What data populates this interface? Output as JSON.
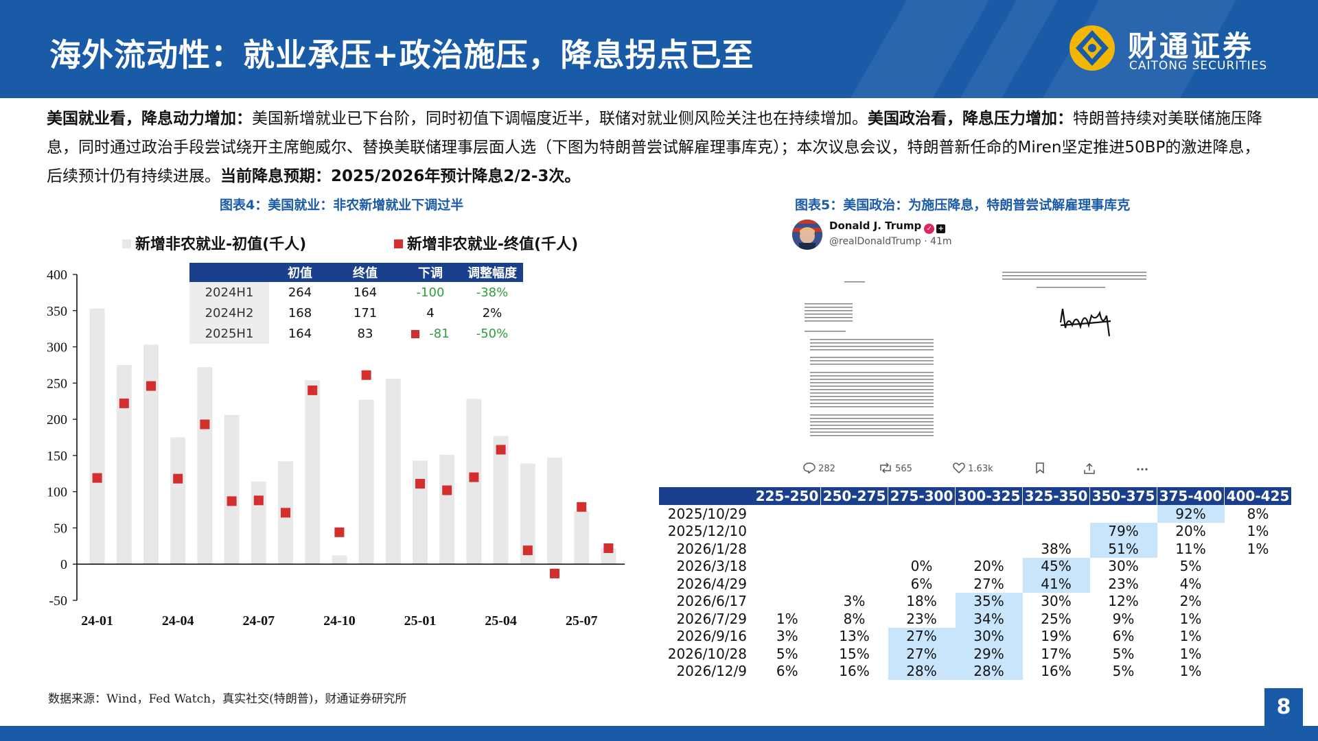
{
  "header": {
    "title": "海外流动性：就业承压+政治施压，降息拐点已至",
    "logo_cn": "财通证券",
    "logo_en": "CAITONG SECURITIES"
  },
  "intro": {
    "s1_bold": "美国就业看，降息动力增加：",
    "s1_text": "美国新增就业已下台阶，同时初值下调幅度近半，联储对就业侧风险关注也在持续增加。",
    "s2_bold": "美国政治看，降息压力增加：",
    "s2_text": "特朗普持续对美联储施压降息，同时通过政治手段尝试绕开主席鲍威尔、替换美联储理事层面人选（下图为特朗普尝试解雇理事库克）；本次议息会议，特朗普新任命的Miren坚定推进50BP的激进降息，后续预计仍有持续进展。",
    "s3_bold": "当前降息预期：2025/2026年预计降息2/2-3次。"
  },
  "fig4": {
    "title": "图表4：美国就业：非农新增就业下调过半",
    "legend_initial": "新增非农就业-初值(千人)",
    "legend_final": "新增非农就业-终值(千人)",
    "table": {
      "headers": [
        "",
        "初值",
        "终值",
        "下调",
        "调整幅度"
      ],
      "rows": [
        [
          "2024H1",
          "264",
          "164",
          "-100",
          "-38%"
        ],
        [
          "2024H2",
          "168",
          "171",
          "4",
          "2%"
        ],
        [
          "2025H1",
          "164",
          "83",
          "-81",
          "-50%"
        ]
      ]
    }
  },
  "chart_data": {
    "type": "bar",
    "title": "图表4：美国就业：非农新增就业下调过半",
    "ylim": [
      -50,
      400
    ],
    "yticks": [
      -50,
      0,
      50,
      100,
      150,
      200,
      250,
      300,
      350,
      400
    ],
    "x_tick_labels": [
      "24-01",
      "24-04",
      "24-07",
      "24-10",
      "25-01",
      "25-04",
      "25-07"
    ],
    "x_tick_index": [
      0,
      3,
      6,
      9,
      12,
      15,
      18
    ],
    "colors": {
      "initial": "#e8e8e8",
      "final": "#d32f2f"
    },
    "series": [
      {
        "name": "新增非农就业-初值(千人)",
        "kind": "bar",
        "values": [
          353,
          275,
          303,
          175,
          272,
          206,
          114,
          142,
          254,
          12,
          227,
          256,
          143,
          151,
          228,
          177,
          139,
          147,
          73,
          22
        ]
      },
      {
        "name": "新增非农就业-终值(千人)",
        "kind": "marker",
        "values": [
          119,
          222,
          246,
          118,
          193,
          87,
          88,
          71,
          240,
          44,
          261,
          null,
          111,
          102,
          120,
          158,
          19,
          -13,
          79,
          22
        ]
      }
    ]
  },
  "fig5": {
    "title": "图表5：美国政治：为施压降息，特朗普尝试解雇理事库克",
    "tweet": {
      "name": "Donald J. Trump",
      "handle": "@realDonaldTrump · 41m",
      "replies": "282",
      "reposts": "565",
      "likes": "1.63k"
    }
  },
  "fedwatch": {
    "headers": [
      "225-250",
      "250-275",
      "275-300",
      "300-325",
      "325-350",
      "350-375",
      "375-400",
      "400-425"
    ],
    "highlight_color": "#c9e5fb",
    "rows": [
      {
        "date": "2025/10/29",
        "cells": [
          "",
          "",
          "",
          "",
          "",
          "",
          "92%",
          "8%"
        ],
        "hl": [
          6
        ]
      },
      {
        "date": "2025/12/10",
        "cells": [
          "",
          "",
          "",
          "",
          "",
          "79%",
          "20%",
          "1%"
        ],
        "hl": [
          5
        ]
      },
      {
        "date": "2026/1/28",
        "cells": [
          "",
          "",
          "",
          "",
          "38%",
          "51%",
          "11%",
          "1%"
        ],
        "hl": [
          5
        ]
      },
      {
        "date": "2026/3/18",
        "cells": [
          "",
          "",
          "0%",
          "20%",
          "45%",
          "30%",
          "5%",
          ""
        ],
        "hl": [
          4
        ]
      },
      {
        "date": "2026/4/29",
        "cells": [
          "",
          "",
          "6%",
          "27%",
          "41%",
          "23%",
          "4%",
          ""
        ],
        "hl": [
          4
        ]
      },
      {
        "date": "2026/6/17",
        "cells": [
          "",
          "3%",
          "18%",
          "35%",
          "30%",
          "12%",
          "2%",
          ""
        ],
        "hl": [
          3
        ]
      },
      {
        "date": "2026/7/29",
        "cells": [
          "1%",
          "8%",
          "23%",
          "34%",
          "25%",
          "9%",
          "1%",
          ""
        ],
        "hl": [
          3
        ]
      },
      {
        "date": "2026/9/16",
        "cells": [
          "3%",
          "13%",
          "27%",
          "30%",
          "19%",
          "6%",
          "1%",
          ""
        ],
        "hl": [
          2,
          3
        ]
      },
      {
        "date": "2026/10/28",
        "cells": [
          "5%",
          "15%",
          "27%",
          "29%",
          "17%",
          "5%",
          "1%",
          ""
        ],
        "hl": [
          2,
          3
        ]
      },
      {
        "date": "2026/12/9",
        "cells": [
          "6%",
          "16%",
          "28%",
          "28%",
          "16%",
          "5%",
          "1%",
          ""
        ],
        "hl": [
          2,
          3
        ]
      }
    ]
  },
  "source": "数据来源：Wind，Fed Watch，真实社交(特朗普)，财通证券研究所",
  "page_number": "8"
}
